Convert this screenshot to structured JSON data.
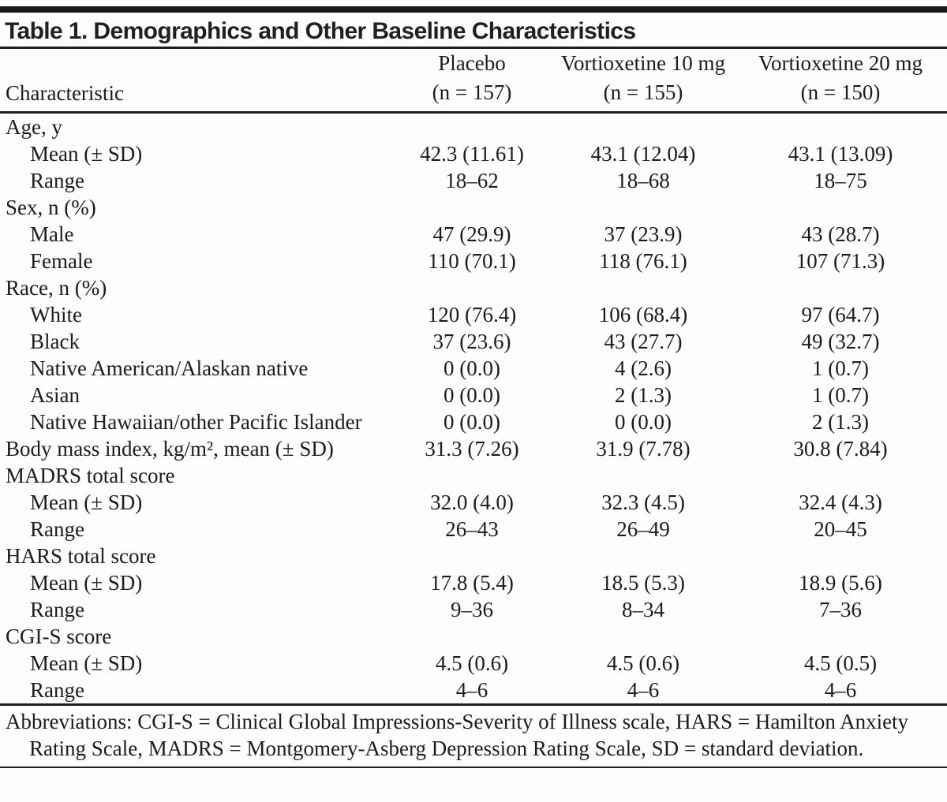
{
  "title": "Table 1. Demographics and Other Baseline Characteristics",
  "columns": {
    "characteristic": "Characteristic",
    "groups": [
      {
        "name": "Placebo",
        "n": "(n = 157)"
      },
      {
        "name": "Vortioxetine 10 mg",
        "n": "(n = 155)"
      },
      {
        "name": "Vortioxetine 20 mg",
        "n": "(n = 150)"
      }
    ]
  },
  "rows": [
    {
      "label": "Age, y",
      "indent": false
    },
    {
      "label": "Mean (± SD)",
      "indent": true,
      "values": [
        "42.3 (11.61)",
        "43.1 (12.04)",
        "43.1 (13.09)"
      ]
    },
    {
      "label": "Range",
      "indent": true,
      "values": [
        "18–62",
        "18–68",
        "18–75"
      ]
    },
    {
      "label": "Sex, n (%)",
      "indent": false
    },
    {
      "label": "Male",
      "indent": true,
      "values": [
        "47 (29.9)",
        "37 (23.9)",
        "43 (28.7)"
      ]
    },
    {
      "label": "Female",
      "indent": true,
      "values": [
        "110 (70.1)",
        "118 (76.1)",
        "107 (71.3)"
      ]
    },
    {
      "label": "Race, n (%)",
      "indent": false
    },
    {
      "label": "White",
      "indent": true,
      "values": [
        "120 (76.4)",
        "106 (68.4)",
        "97 (64.7)"
      ]
    },
    {
      "label": "Black",
      "indent": true,
      "values": [
        "37 (23.6)",
        "43 (27.7)",
        "49 (32.7)"
      ]
    },
    {
      "label": "Native American/Alaskan native",
      "indent": true,
      "values": [
        "0 (0.0)",
        "4 (2.6)",
        "1 (0.7)"
      ]
    },
    {
      "label": "Asian",
      "indent": true,
      "values": [
        "0 (0.0)",
        "2 (1.3)",
        "1 (0.7)"
      ]
    },
    {
      "label": "Native Hawaiian/other Pacific Islander",
      "indent": true,
      "values": [
        "0 (0.0)",
        "0 (0.0)",
        "2 (1.3)"
      ]
    },
    {
      "label": "Body mass index, kg/m², mean (± SD)",
      "indent": false,
      "values": [
        "31.3 (7.26)",
        "31.9 (7.78)",
        "30.8 (7.84)"
      ]
    },
    {
      "label": "MADRS total score",
      "indent": false
    },
    {
      "label": "Mean (± SD)",
      "indent": true,
      "values": [
        "32.0 (4.0)",
        "32.3 (4.5)",
        "32.4 (4.3)"
      ]
    },
    {
      "label": "Range",
      "indent": true,
      "values": [
        "26–43",
        "26–49",
        "20–45"
      ]
    },
    {
      "label": "HARS total score",
      "indent": false
    },
    {
      "label": "Mean (± SD)",
      "indent": true,
      "values": [
        "17.8 (5.4)",
        "18.5 (5.3)",
        "18.9 (5.6)"
      ]
    },
    {
      "label": "Range",
      "indent": true,
      "values": [
        "9–36",
        "8–34",
        "7–36"
      ]
    },
    {
      "label": "CGI-S score",
      "indent": false
    },
    {
      "label": "Mean (± SD)",
      "indent": true,
      "values": [
        "4.5 (0.6)",
        "4.5 (0.6)",
        "4.5 (0.5)"
      ]
    },
    {
      "label": "Range",
      "indent": true,
      "values": [
        "4–6",
        "4–6",
        "4–6"
      ]
    }
  ],
  "footnote": "Abbreviations: CGI-S = Clinical Global Impressions-Severity of Illness scale, HARS = Hamilton Anxiety Rating Scale, MADRS = Montgomery-Asberg Depression Rating Scale, SD = standard deviation.",
  "colors": {
    "text": "#1e1b1c",
    "rule": "#221e1f",
    "background": "#fdfdfd"
  }
}
